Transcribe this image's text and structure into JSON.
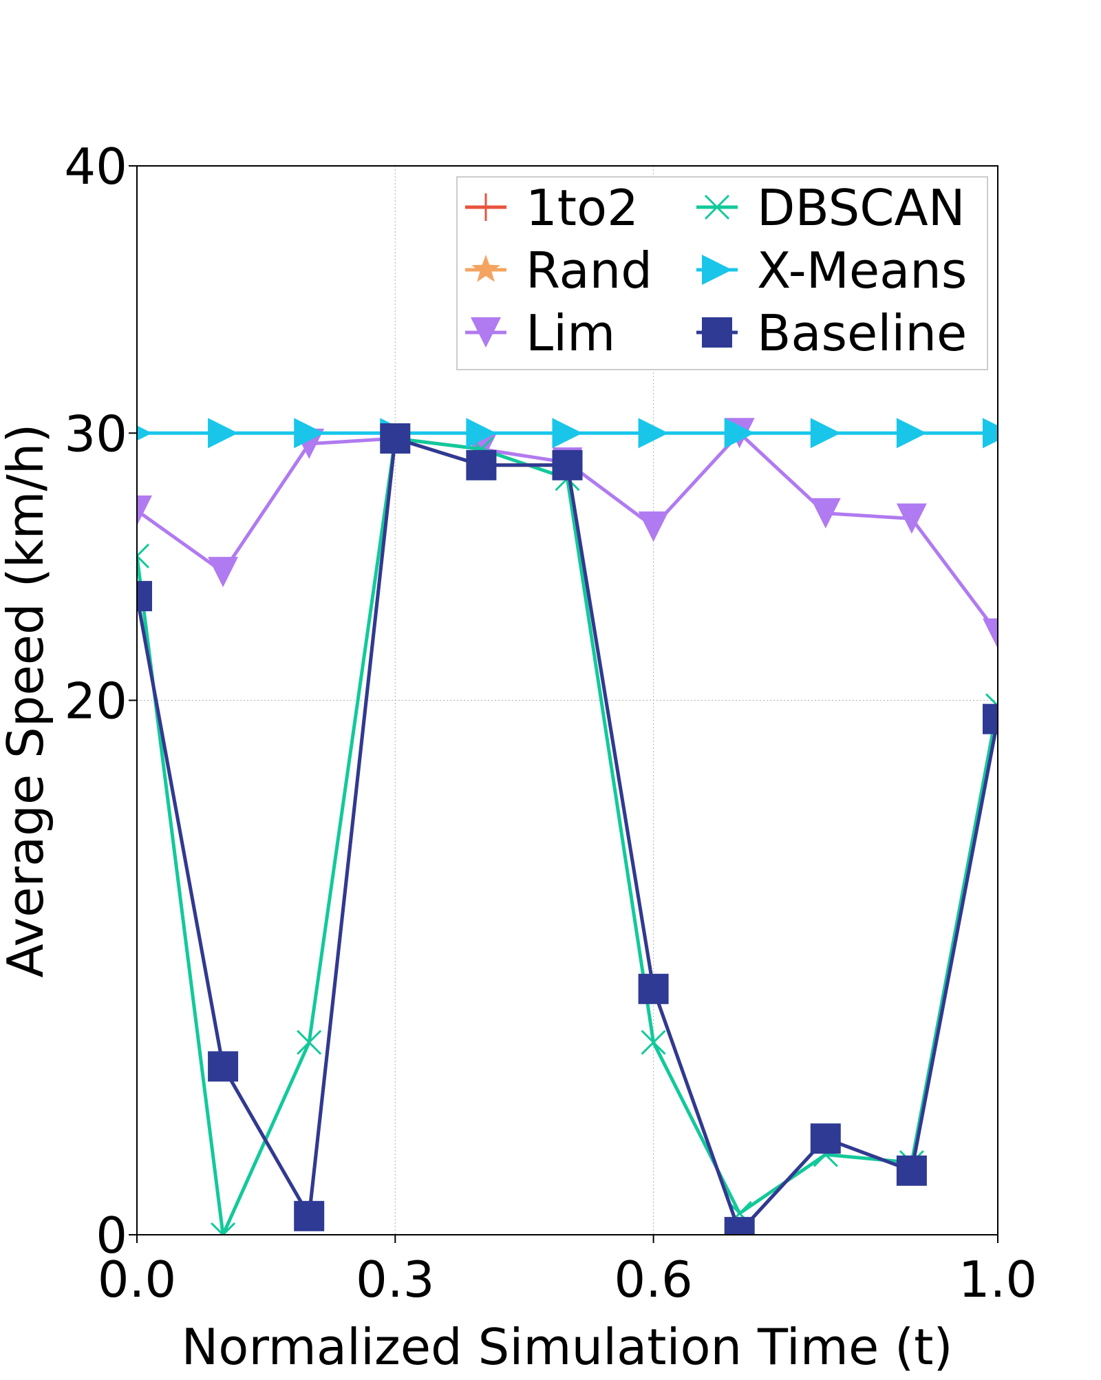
{
  "chart_data": {
    "type": "line",
    "title": "",
    "xlabel": "Normalized Simulation Time (t)",
    "ylabel": "Average Speed (km/h)",
    "xlim": [
      0.0,
      1.0
    ],
    "ylim": [
      0,
      40
    ],
    "x_ticks": [
      0.0,
      0.3,
      0.6,
      1.0
    ],
    "x_tick_labels": [
      "0.0",
      "0.3",
      "0.6",
      "1.0"
    ],
    "y_ticks": [
      0,
      20,
      30,
      40
    ],
    "y_tick_labels": [
      "0",
      "20",
      "30",
      "40"
    ],
    "grid": true,
    "legend_position": "top-right",
    "legend_columns": 2,
    "x": [
      0.0,
      0.1,
      0.2,
      0.3,
      0.4,
      0.5,
      0.6,
      0.7,
      0.8,
      0.9,
      1.0
    ],
    "series": [
      {
        "name": "1to2",
        "color": "#e8533d",
        "marker": "plus",
        "values": [
          23.9,
          6.3,
          0.7,
          29.8,
          28.8,
          28.8,
          9.2,
          0.1,
          3.6,
          2.4,
          19.3
        ]
      },
      {
        "name": "Rand",
        "color": "#f4a460",
        "marker": "star",
        "values": [
          23.9,
          6.3,
          0.7,
          29.8,
          28.8,
          28.8,
          9.2,
          0.1,
          3.6,
          2.4,
          19.3
        ]
      },
      {
        "name": "Lim",
        "color": "#b07af0",
        "marker": "triangle-down",
        "values": [
          27.1,
          24.8,
          29.6,
          29.8,
          29.4,
          28.9,
          26.5,
          30.0,
          27.0,
          26.8,
          22.5
        ]
      },
      {
        "name": "DBSCAN",
        "color": "#12c99b",
        "marker": "x",
        "values": [
          25.4,
          0.0,
          7.2,
          29.8,
          29.4,
          28.3,
          7.2,
          0.8,
          3.0,
          2.7,
          19.8
        ]
      },
      {
        "name": "X-Means",
        "color": "#19c6ea",
        "marker": "triangle-right",
        "values": [
          30.0,
          30.0,
          30.0,
          30.0,
          30.0,
          30.0,
          30.0,
          30.0,
          30.0,
          30.0,
          30.0
        ]
      },
      {
        "name": "Baseline",
        "color": "#2e3a94",
        "marker": "square",
        "values": [
          23.9,
          6.3,
          0.7,
          29.8,
          28.8,
          28.8,
          9.2,
          0.1,
          3.6,
          2.4,
          19.3
        ]
      }
    ]
  }
}
